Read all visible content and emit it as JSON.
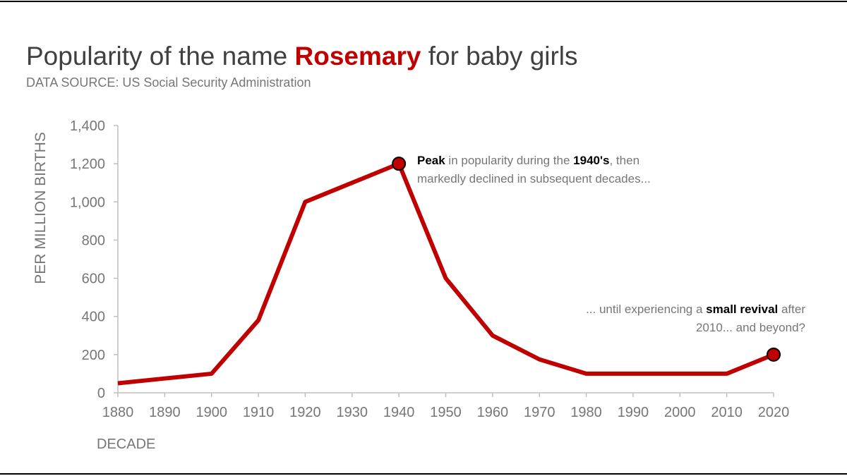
{
  "chart_data": {
    "type": "line",
    "title": [
      {
        "text": "Popularity of the name ",
        "color": "#404040",
        "bold": false
      },
      {
        "text": "Rosemary",
        "color": "#c00000",
        "bold": true
      },
      {
        "text": " for baby girls",
        "color": "#404040",
        "bold": false
      }
    ],
    "subtitle": "DATA SOURCE: US Social Security Administration",
    "x_label": "DECADE",
    "y_label": "PER MILLION BIRTHS",
    "x": [
      1880,
      1890,
      1900,
      1910,
      1920,
      1930,
      1940,
      1950,
      1960,
      1970,
      1980,
      1990,
      2000,
      2010,
      2020
    ],
    "values": [
      50,
      75,
      100,
      380,
      1000,
      1100,
      1200,
      600,
      300,
      175,
      100,
      100,
      100,
      100,
      200
    ],
    "color": "#c00000",
    "marked_points": [
      6,
      14
    ],
    "xlim": [
      1880,
      2020
    ],
    "xticks": [
      1880,
      1890,
      1900,
      1910,
      1920,
      1930,
      1940,
      1950,
      1960,
      1970,
      1980,
      1990,
      2000,
      2010,
      2020
    ],
    "ylim": [
      0,
      1400
    ],
    "yticks": [
      0,
      200,
      400,
      600,
      800,
      {
        "value": 1000,
        "label": "1,000"
      },
      {
        "value": 1200,
        "label": "1,200"
      },
      {
        "value": 1400,
        "label": "1,400"
      }
    ],
    "annotations": [
      {
        "align": "left",
        "lines": [
          [
            {
              "text": "Peak",
              "bold": true
            },
            {
              "text": " in popularity during the ",
              "bold": false
            },
            {
              "text": "1940's",
              "bold": true
            },
            {
              "text": ", then",
              "bold": false
            }
          ],
          [
            {
              "text": "markedly declined in subsequent decades...",
              "bold": false
            }
          ]
        ]
      },
      {
        "align": "right",
        "lines": [
          [
            {
              "text": "... until experiencing a ",
              "bold": false
            },
            {
              "text": "small revival",
              "bold": true
            },
            {
              "text": " after",
              "bold": false
            }
          ],
          [
            {
              "text": "2010... and beyond?",
              "bold": false
            }
          ]
        ]
      }
    ]
  }
}
